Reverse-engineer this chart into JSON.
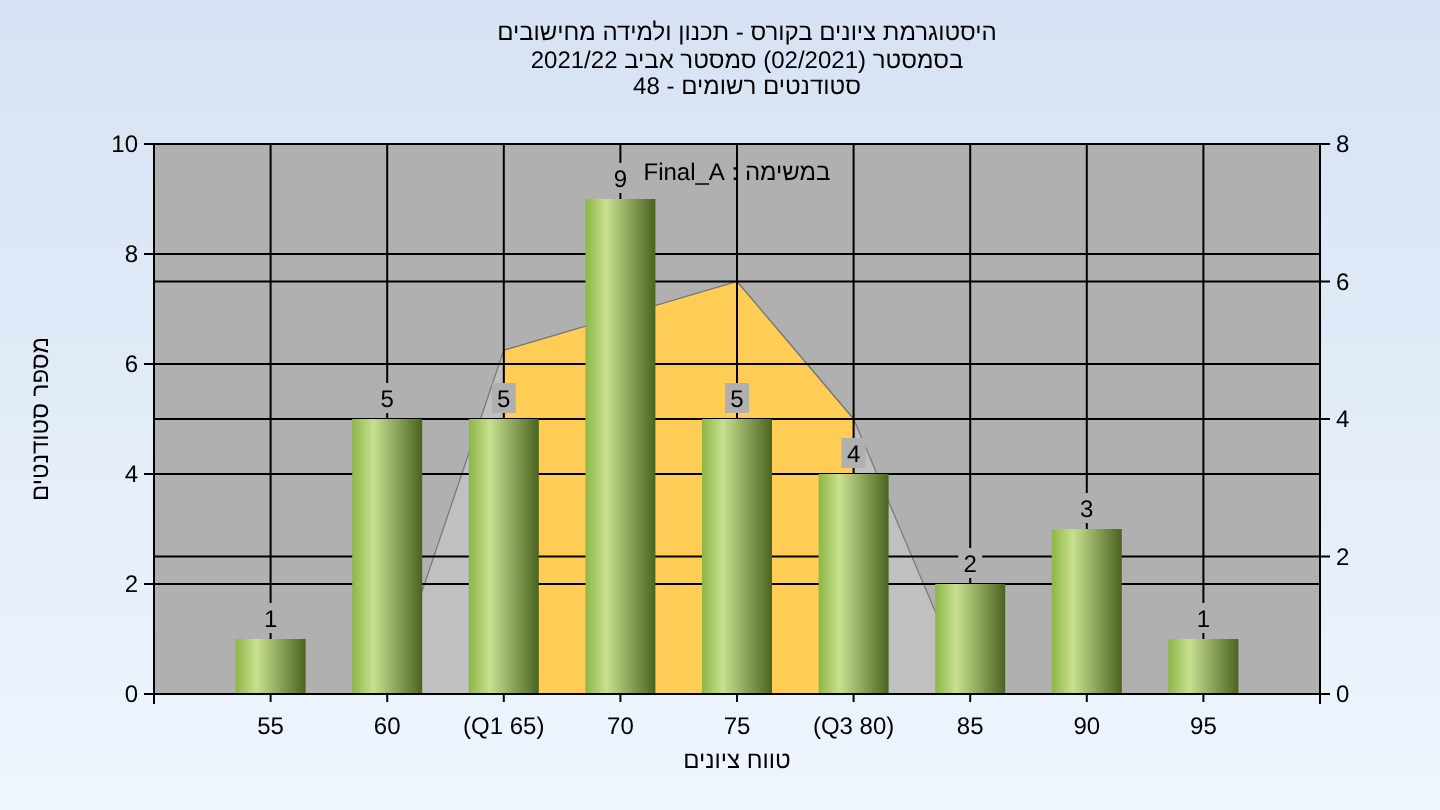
{
  "chart_data": {
    "type": "bar",
    "title": "היסטוגרמת ציונים בקורס - תכנון ולמידה מחישובים",
    "subtitle": "בסמסטר  (02/2021)  סמסטר אביב 2021/22\nסטודנטים רשומים - 48",
    "xlabel": "טווח ציונים",
    "ylabel": "מספר סטודנטים",
    "annotations": [
      "במשימה : Final_A"
    ],
    "categories": [
      "55",
      "60",
      "(Q1 65)",
      "70",
      "75",
      "(Q3 80)",
      "85",
      "90",
      "95"
    ],
    "series": [
      {
        "type": "area",
        "axis": "y2",
        "color": "#c0c0c0",
        "values": [
          null,
          0,
          5,
          null,
          6,
          4,
          0,
          null,
          null
        ]
      },
      {
        "type": "area",
        "axis": "y2",
        "color": "#ffcc55",
        "values": [
          null,
          null,
          5,
          null,
          6,
          4,
          null,
          null,
          null
        ]
      },
      {
        "color": "#8db645",
        "values": [
          1,
          5,
          5,
          9,
          5,
          4,
          2,
          3,
          1
        ],
        "value_labels": [
          "1",
          "5",
          "5",
          "9",
          "5",
          "4",
          "2",
          "3",
          "1"
        ]
      }
    ],
    "ylim": [
      0,
      10
    ],
    "yticks": [
      0,
      2,
      4,
      6,
      8,
      10
    ],
    "y2lim": [
      0,
      8
    ],
    "y2ticks": [
      0,
      2,
      4,
      6,
      8
    ],
    "grid": true
  }
}
